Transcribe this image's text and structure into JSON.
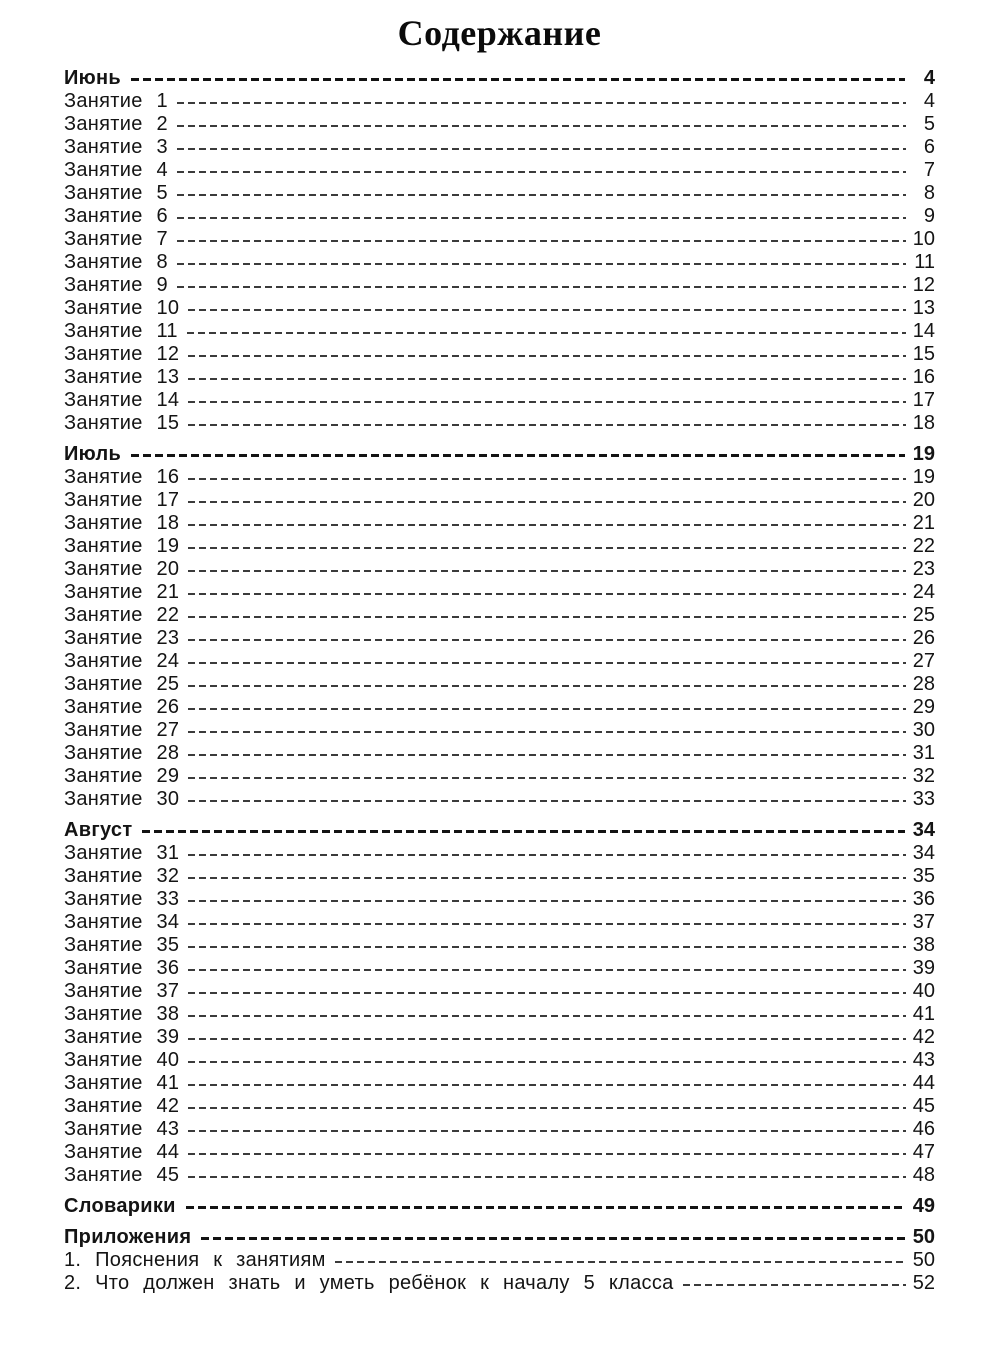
{
  "page": {
    "title": "Содержание"
  },
  "toc": {
    "sections": [
      {
        "label": "Июнь",
        "page": "4",
        "entries": [
          {
            "label": "Занятие 1",
            "page": "4"
          },
          {
            "label": "Занятие 2",
            "page": "5"
          },
          {
            "label": "Занятие 3",
            "page": "6"
          },
          {
            "label": "Занятие 4",
            "page": "7"
          },
          {
            "label": "Занятие 5",
            "page": "8"
          },
          {
            "label": "Занятие 6",
            "page": "9"
          },
          {
            "label": "Занятие 7",
            "page": "10"
          },
          {
            "label": "Занятие 8",
            "page": "11"
          },
          {
            "label": "Занятие 9",
            "page": "12"
          },
          {
            "label": "Занятие 10",
            "page": "13"
          },
          {
            "label": "Занятие 11",
            "page": "14"
          },
          {
            "label": "Занятие 12",
            "page": "15"
          },
          {
            "label": "Занятие 13",
            "page": "16"
          },
          {
            "label": "Занятие 14",
            "page": "17"
          },
          {
            "label": "Занятие 15",
            "page": "18"
          }
        ]
      },
      {
        "label": "Июль",
        "page": "19",
        "entries": [
          {
            "label": "Занятие 16",
            "page": "19"
          },
          {
            "label": "Занятие 17",
            "page": "20"
          },
          {
            "label": "Занятие 18",
            "page": "21"
          },
          {
            "label": "Занятие 19",
            "page": "22"
          },
          {
            "label": "Занятие 20",
            "page": "23"
          },
          {
            "label": "Занятие 21",
            "page": "24"
          },
          {
            "label": "Занятие 22",
            "page": "25"
          },
          {
            "label": "Занятие 23",
            "page": "26"
          },
          {
            "label": "Занятие 24",
            "page": "27"
          },
          {
            "label": "Занятие 25",
            "page": "28"
          },
          {
            "label": "Занятие 26",
            "page": "29"
          },
          {
            "label": "Занятие 27",
            "page": "30"
          },
          {
            "label": "Занятие 28",
            "page": "31"
          },
          {
            "label": "Занятие 29",
            "page": "32"
          },
          {
            "label": "Занятие 30",
            "page": "33"
          }
        ]
      },
      {
        "label": "Август",
        "page": "34",
        "entries": [
          {
            "label": "Занятие 31",
            "page": "34"
          },
          {
            "label": "Занятие 32",
            "page": "35"
          },
          {
            "label": "Занятие 33",
            "page": "36"
          },
          {
            "label": "Занятие 34",
            "page": "37"
          },
          {
            "label": "Занятие 35",
            "page": "38"
          },
          {
            "label": "Занятие 36",
            "page": "39"
          },
          {
            "label": "Занятие 37",
            "page": "40"
          },
          {
            "label": "Занятие 38",
            "page": "41"
          },
          {
            "label": "Занятие 39",
            "page": "42"
          },
          {
            "label": "Занятие 40",
            "page": "43"
          },
          {
            "label": "Занятие 41",
            "page": "44"
          },
          {
            "label": "Занятие 42",
            "page": "45"
          },
          {
            "label": "Занятие 43",
            "page": "46"
          },
          {
            "label": "Занятие 44",
            "page": "47"
          },
          {
            "label": "Занятие 45",
            "page": "48"
          }
        ]
      },
      {
        "label": "Словарики",
        "page": "49",
        "entries": []
      },
      {
        "label": "Приложения",
        "page": "50",
        "entries": [
          {
            "label": "1. Пояснения к занятиям",
            "page": "50"
          },
          {
            "label": "2. Что должен знать и уметь ребёнок к началу 5 класса",
            "page": "52"
          }
        ]
      }
    ]
  }
}
